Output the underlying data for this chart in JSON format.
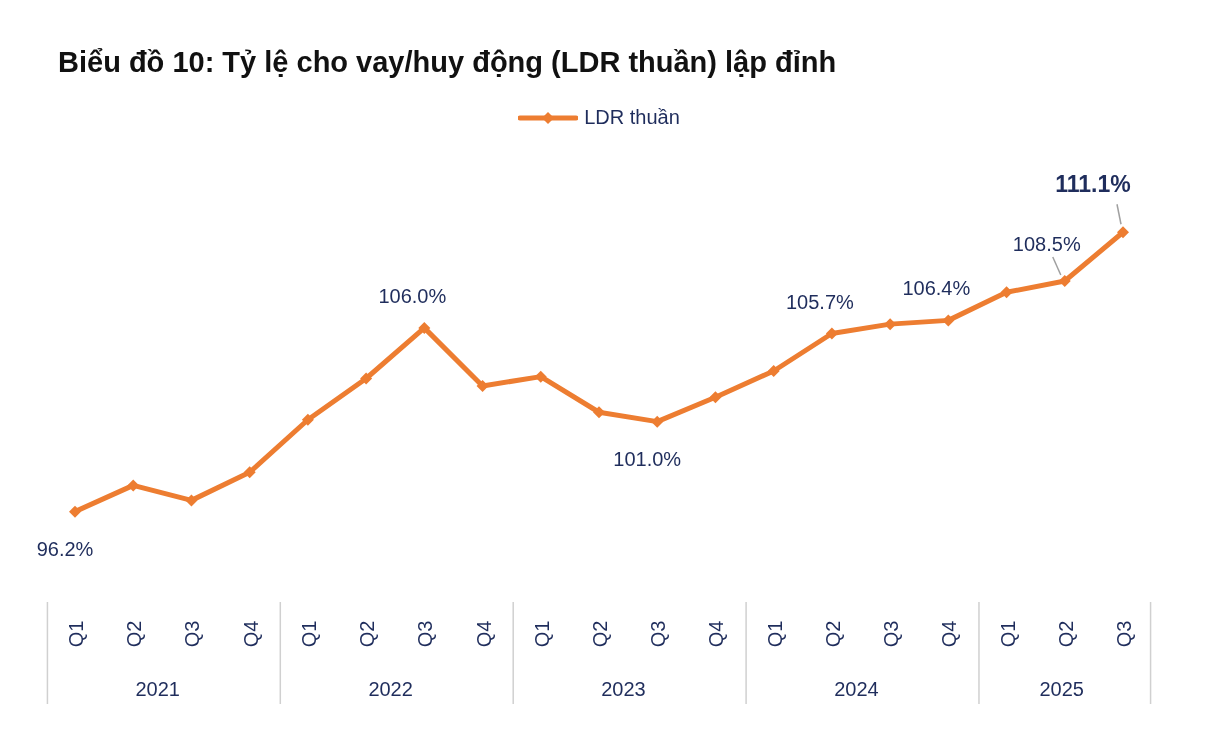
{
  "chart_data": {
    "type": "line",
    "title": "Biểu đồ 10: Tỷ lệ cho vay/huy động (LDR thuần) lập đỉnh",
    "categories": [
      "Q1",
      "Q2",
      "Q3",
      "Q4",
      "Q1",
      "Q2",
      "Q3",
      "Q4",
      "Q1",
      "Q2",
      "Q3",
      "Q4",
      "Q1",
      "Q2",
      "Q3",
      "Q4",
      "Q1",
      "Q2",
      "Q3"
    ],
    "annotations": [
      "2021",
      "2022",
      "2023",
      "2024",
      "2025"
    ],
    "series": [
      {
        "name": "LDR thuần",
        "color": "#ed7d31",
        "values": [
          96.2,
          97.6,
          96.8,
          98.3,
          101.1,
          103.3,
          106.0,
          102.9,
          103.4,
          101.5,
          101.0,
          102.3,
          103.7,
          105.7,
          106.2,
          106.4,
          107.9,
          108.5,
          111.1
        ],
        "value_labels": [
          "96.2%",
          null,
          null,
          null,
          null,
          null,
          "106.0%",
          null,
          null,
          null,
          "101.0%",
          null,
          null,
          "105.7%",
          null,
          "106.4%",
          null,
          "108.5%",
          "111.1%"
        ]
      }
    ],
    "legend": "top",
    "marker": "diamond",
    "line_style": "solid",
    "grid": false
  }
}
